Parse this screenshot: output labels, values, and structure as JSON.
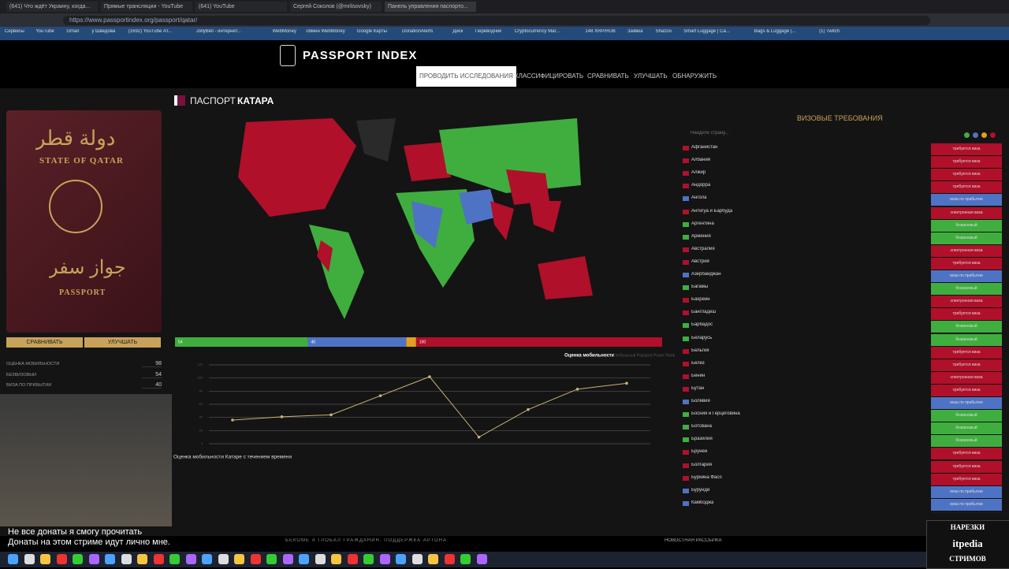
{
  "browser": {
    "tabs": [
      "(641) Что ждёт Украину, когда...",
      "Прямые трансляции - YouTube",
      "(641) YouTube",
      "Сергей Соколов (@mrlisovsky)",
      "Панель управления паспорто..."
    ],
    "url": "https://www.passportindex.org/passport/qatar/",
    "bookmarks": [
      "Сервисы",
      "YouTube",
      "Gmail",
      "у Шведова",
      "(1692) YouTube Ат...",
      "JollyBell - интернет...",
      "WebMoney",
      "обмен WebMoney",
      "Google Карты",
      "DonationAlerts",
      "Диск",
      "Переводчик",
      "Cryptocurrency Mar...",
      "148 XRP/RUB",
      "Заявка",
      "Shazoo",
      "Smart Luggage | Ca...",
      "Bags & Luggage |...",
      "(1) Twitch"
    ]
  },
  "header": {
    "logo": "PASSPORT INDEX",
    "nav": [
      "ПРОВОДИТЬ ИССЛЕДОВАНИЯ",
      "КЛАССИФИЦИРОВАТЬ",
      "СРАВНИВАТЬ",
      "УЛУЧШАТЬ",
      "ОБНАРУЖИТЬ"
    ]
  },
  "passport": {
    "arabic_title": "دولة قطر",
    "title": "STATE OF QATAR",
    "arabic_label": "جواز سفر",
    "label": "PASSPORT",
    "buttons": [
      "СРАВНИВАТЬ",
      "УЛУЧШАТЬ"
    ],
    "stats": [
      {
        "name": "ОЦЕНКА МОБИЛЬНОСТИ",
        "value": 98
      },
      {
        "name": "БЕЗВИЗОВЫЙ",
        "value": 54
      },
      {
        "name": "ВИЗА ПО ПРИБЫТИИ",
        "value": 40
      }
    ]
  },
  "map": {
    "title_prefix": "ПАСПОРТ",
    "title_country": "КАТАРА",
    "bar": [
      {
        "value": 54,
        "color": "#3fae3f",
        "label": "54"
      },
      {
        "value": 40,
        "color": "#4f73c4",
        "label": "40"
      },
      {
        "value": 4,
        "color": "#e0a020"
      },
      {
        "value": 100,
        "color": "#b0102a",
        "label": "100"
      }
    ],
    "legend": "Оценка мобильности",
    "legend_sub": "Глобальный Passport Power Rank"
  },
  "chart_data": {
    "type": "line",
    "title": "Оценка мобильности Катаре с течением времени",
    "values": [
      36,
      41,
      44,
      73,
      102,
      10,
      52,
      83,
      92
    ],
    "color": "#c8b27a",
    "ylim": [
      0,
      120
    ],
    "yticks": [
      0,
      20,
      40,
      60,
      80,
      100,
      120
    ],
    "grid": true
  },
  "visa": {
    "title": "ВИЗОВЫЕ ТРЕБОВАНИЯ",
    "search": "Найдите страну...",
    "status_colors": {
      "требуется виза": "#b0102a",
      "электронная виза": "#b0102a",
      "безвизовый": "#3fae3f",
      "виза по прибытии": "#4f73c4"
    },
    "countries": [
      [
        "Афганистан",
        "требуется виза"
      ],
      [
        "Албания",
        "требуется виза"
      ],
      [
        "Алжир",
        "требуется виза"
      ],
      [
        "Андорра",
        "требуется виза"
      ],
      [
        "Ангола",
        "виза по прибытии"
      ],
      [
        "Антигуа и Барбуда",
        "электронная виза"
      ],
      [
        "Аргентина",
        "безвизовый"
      ],
      [
        "Армения",
        "безвизовый"
      ],
      [
        "Австралия",
        "электронная виза"
      ],
      [
        "Австрия",
        "требуется виза"
      ],
      [
        "Азербайджан",
        "виза по прибытии"
      ],
      [
        "Багамы",
        "безвизовый"
      ],
      [
        "Бахрейн",
        "электронная виза"
      ],
      [
        "Бангладеш",
        "требуется виза"
      ],
      [
        "Барбадос",
        "безвизовый"
      ],
      [
        "Беларусь",
        "безвизовый"
      ],
      [
        "Бельгия",
        "требуется виза"
      ],
      [
        "Белиз",
        "требуется виза"
      ],
      [
        "Бенин",
        "электронная виза"
      ],
      [
        "Бутан",
        "требуется виза"
      ],
      [
        "Боливия",
        "виза по прибытии"
      ],
      [
        "Босния и Герцеговина",
        "безвизовый"
      ],
      [
        "Ботсвана",
        "безвизовый"
      ],
      [
        "Бразилия",
        "безвизовый"
      ],
      [
        "Бруней",
        "требуется виза"
      ],
      [
        "Болгария",
        "требуется виза"
      ],
      [
        "Буркина Фасо",
        "требуется виза"
      ],
      [
        "Бурунди",
        "виза по прибытии"
      ],
      [
        "Камбоджа",
        "виза по прибытии"
      ]
    ]
  },
  "footer": {
    "left": "БЕКОМЕ А ГЛОБАЛ ГРАЖДАНИН. ПОДДЕРЖКА АРТОНА",
    "right": "НОВОСТНАЯ РАССЫЛКА"
  },
  "stream": {
    "subtitles": [
      "Не все донаты я смогу прочитать",
      "Донаты на этом стриме идут лично мне."
    ],
    "watermark": [
      "НАРЕЗКИ",
      "itpedia",
      "СТРИМОВ"
    ]
  }
}
